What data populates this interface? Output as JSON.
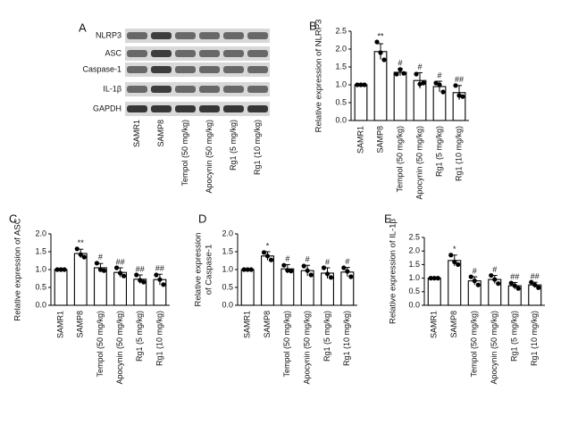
{
  "chart_data": [
    {
      "type": "blot",
      "panel_label": "A",
      "rows": [
        "NLRP3",
        "ASC",
        "Caspase-1",
        "IL-1β",
        "GAPDH"
      ],
      "categories": [
        "SAMR1",
        "SAMP8",
        "Tempol (50 mg/kg)",
        "Apocynin (50 mg/kg)",
        "Rg1 (5 mg/kg)",
        "Rg1 (10 mg/kg)"
      ]
    },
    {
      "type": "bar",
      "panel_label": "B",
      "y_label": "Relative expression of NLRP3",
      "categories": [
        "SAMR1",
        "SAMP8",
        "Tempol (50 mg/kg)",
        "Apocynin (50 mg/kg)",
        "Rg1 (5 mg/kg)",
        "Rg1 (10 mg/kg)"
      ],
      "values": [
        1.0,
        1.93,
        1.35,
        1.12,
        0.95,
        0.78
      ],
      "error": [
        0.0,
        0.22,
        0.1,
        0.22,
        0.15,
        0.2
      ],
      "points": [
        [
          1.0,
          1.0,
          1.0
        ],
        [
          2.2,
          1.9,
          1.7
        ],
        [
          1.3,
          1.43,
          1.32
        ],
        [
          1.3,
          1.02,
          1.05
        ],
        [
          1.05,
          1.0,
          0.8
        ],
        [
          0.98,
          0.7,
          0.67
        ]
      ],
      "annotations": [
        null,
        "**",
        "#",
        "#",
        "#",
        "##"
      ],
      "ylim": [
        0,
        2.5
      ],
      "yticks": [
        {
          "value": 0,
          "label": "0.0"
        },
        0.5,
        {
          "value": 1,
          "label": "1.0"
        },
        1.5,
        {
          "value": 2,
          "label": "2.0"
        },
        2.5
      ]
    },
    {
      "type": "bar",
      "panel_label": "C",
      "y_label": "Relative expression of ASC",
      "categories": [
        "SAMR1",
        "SAMP8",
        "Tempol (50 mg/kg)",
        "Apocynin (50 mg/kg)",
        "Rg1 (5 mg/kg)",
        "Rg1 (10 mg/kg)"
      ],
      "values": [
        1.0,
        1.45,
        1.05,
        0.92,
        0.73,
        0.72
      ],
      "error": [
        0.0,
        0.12,
        0.12,
        0.13,
        0.12,
        0.15
      ],
      "points": [
        [
          1.0,
          1.0,
          1.0
        ],
        [
          1.58,
          1.42,
          1.35
        ],
        [
          1.18,
          1.0,
          0.97
        ],
        [
          1.05,
          0.9,
          0.82
        ],
        [
          0.85,
          0.7,
          0.65
        ],
        [
          0.85,
          0.72,
          0.58
        ]
      ],
      "annotations": [
        null,
        "**",
        "#",
        "##",
        "##",
        "##"
      ],
      "ylim": [
        0,
        2.0
      ],
      "yticks": [
        {
          "value": 0,
          "label": "0.0"
        },
        0.5,
        {
          "value": 1,
          "label": "1.0"
        },
        1.5,
        {
          "value": 2,
          "label": "2.0"
        }
      ]
    },
    {
      "type": "bar",
      "panel_label": "D",
      "y_label": [
        "Relative expression",
        "of Caspase-1"
      ],
      "categories": [
        "SAMR1",
        "SAMP8",
        "Tempol (50 mg/kg)",
        "Apocynin (50 mg/kg)",
        "Rg1 (5 mg/kg)",
        "Rg1 (10 mg/kg)"
      ],
      "values": [
        1.0,
        1.38,
        1.02,
        0.97,
        0.9,
        0.93
      ],
      "error": [
        0.0,
        0.12,
        0.12,
        0.15,
        0.15,
        0.13
      ],
      "points": [
        [
          1.0,
          1.0,
          1.0
        ],
        [
          1.48,
          1.38,
          1.27
        ],
        [
          1.12,
          0.98,
          0.96
        ],
        [
          1.1,
          0.97,
          0.85
        ],
        [
          1.05,
          0.88,
          0.78
        ],
        [
          1.05,
          0.95,
          0.8
        ]
      ],
      "annotations": [
        null,
        "*",
        "#",
        "#",
        "#",
        "#"
      ],
      "ylim": [
        0,
        2.0
      ],
      "yticks": [
        {
          "value": 0,
          "label": "0.0"
        },
        0.5,
        {
          "value": 1,
          "label": "1.0"
        },
        1.5,
        {
          "value": 2,
          "label": "2.0"
        }
      ]
    },
    {
      "type": "bar",
      "panel_label": "E",
      "y_label": "Relative expression of IL-1β",
      "categories": [
        "SAMR1",
        "SAMP8",
        "Tempol (50 mg/kg)",
        "Apocynin (50 mg/kg)",
        "Rg1 (5 mg/kg)",
        "Rg1 (10 mg/kg)"
      ],
      "values": [
        1.0,
        1.65,
        0.9,
        0.95,
        0.72,
        0.75
      ],
      "error": [
        0.0,
        0.2,
        0.15,
        0.15,
        0.12,
        0.1
      ],
      "points": [
        [
          1.0,
          1.0,
          1.0
        ],
        [
          1.85,
          1.6,
          1.5
        ],
        [
          1.05,
          0.9,
          0.75
        ],
        [
          1.1,
          0.95,
          0.8
        ],
        [
          0.82,
          0.72,
          0.62
        ],
        [
          0.85,
          0.75,
          0.65
        ]
      ],
      "annotations": [
        null,
        "*",
        "#",
        "#",
        "##",
        "##"
      ],
      "ylim": [
        0,
        2.5
      ],
      "yticks": [
        {
          "value": 0,
          "label": "0.0"
        },
        0.5,
        {
          "value": 1,
          "label": "1.0"
        },
        1.5,
        {
          "value": 2,
          "label": "2.0"
        },
        2.5
      ]
    }
  ]
}
